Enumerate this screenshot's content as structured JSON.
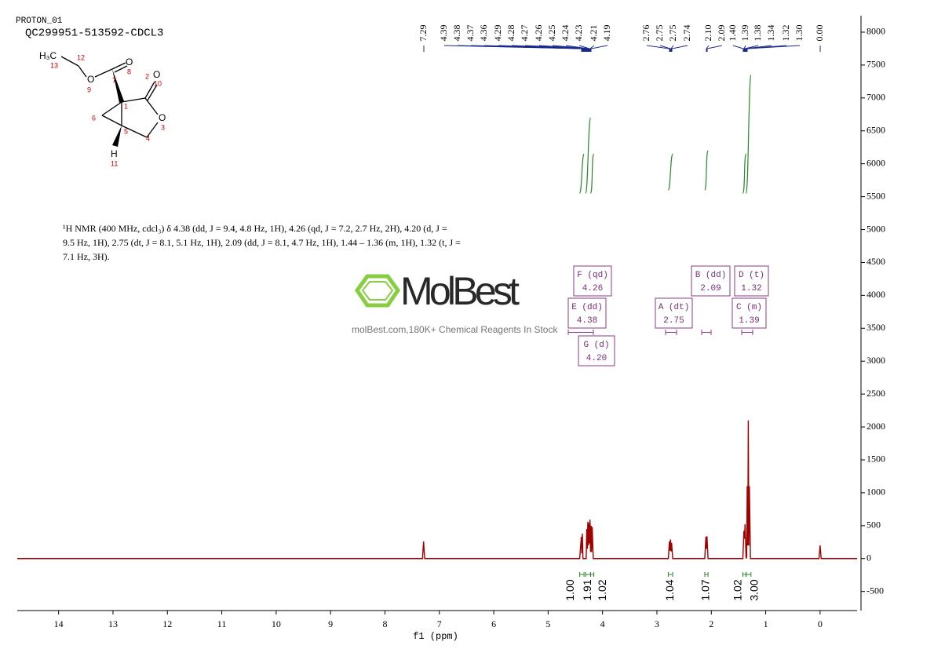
{
  "header": {
    "run": "PROTON_01",
    "sample": "QC299951-513592-CDCL3"
  },
  "molecule": {
    "atoms": [
      "H₃C",
      "13",
      "12",
      "O",
      "9",
      "7",
      "O",
      "8",
      "1",
      "2",
      "O",
      "10",
      "O",
      "3",
      "6",
      "5",
      "4",
      "H",
      "11"
    ]
  },
  "description": [
    "¹H NMR (400 MHz, cdcl₃) δ 4.38 (dd, J = 9.4, 4.8 Hz, 1H), 4.26 (qd, J = 7.2, 2.7 Hz, 2H), 4.20 (d, J =",
    "9.5 Hz, 1H), 2.75 (dt, J = 8.1, 5.1 Hz, 1H), 2.09 (dd, J = 8.1, 4.7 Hz, 1H), 1.44 – 1.36 (m, 1H), 1.32 (t, J =",
    "7.1 Hz, 3H)."
  ],
  "watermark": {
    "brand": "MolBest",
    "tagline": "molBest.com,180K+ Chemical Reagents In Stock"
  },
  "chart_data": {
    "type": "line",
    "x_label": "f1 (ppm)",
    "x": [
      14.76,
      7.31,
      7.29,
      7.27,
      4.42,
      4.39,
      4.38,
      4.37,
      4.36,
      4.3,
      4.29,
      4.28,
      4.27,
      4.26,
      4.25,
      4.24,
      4.23,
      4.22,
      4.21,
      4.2,
      4.19,
      4.17,
      2.79,
      2.77,
      2.76,
      2.75,
      2.74,
      2.73,
      2.71,
      2.12,
      2.1,
      2.09,
      2.08,
      2.06,
      1.42,
      1.4,
      1.39,
      1.38,
      1.36,
      1.35,
      1.34,
      1.33,
      1.32,
      1.31,
      1.3,
      1.28,
      0.02,
      0.0,
      -0.02,
      -0.68
    ],
    "series": [
      {
        "color": "#a00000",
        "values": [
          0,
          0,
          260,
          0,
          0,
          330,
          80,
          380,
          0,
          0,
          450,
          150,
          560,
          200,
          540,
          230,
          590,
          100,
          500,
          100,
          480,
          0,
          0,
          260,
          120,
          290,
          110,
          240,
          0,
          0,
          330,
          150,
          340,
          0,
          0,
          420,
          300,
          520,
          0,
          30,
          1100,
          200,
          2100,
          200,
          1100,
          0,
          0,
          200,
          0,
          0
        ]
      }
    ],
    "xlim": [
      14.76,
      -0.68
    ],
    "xticks": [
      14,
      13,
      12,
      11,
      10,
      9,
      8,
      7,
      6,
      5,
      4,
      3,
      2,
      1,
      0
    ],
    "ylim": [
      -790,
      8250
    ],
    "yticks": [
      -500,
      0,
      500,
      1000,
      1500,
      2000,
      2500,
      3000,
      3500,
      4000,
      4500,
      5000,
      5500,
      6000,
      6500,
      7000,
      7500,
      8000
    ],
    "peak_labels": [
      "7.29",
      "4.39",
      "4.38",
      "4.37",
      "4.36",
      "4.29",
      "4.28",
      "4.27",
      "4.26",
      "4.25",
      "4.24",
      "4.23",
      "4.21",
      "4.19",
      "2.76",
      "2.75",
      "2.75",
      "2.74",
      "2.10",
      "2.09",
      "1.40",
      "1.39",
      "1.38",
      "1.34",
      "1.32",
      "1.30",
      "0.00"
    ],
    "multiplets": [
      {
        "label": "F (qd)",
        "shift": "4.26"
      },
      {
        "label": "B (dd)",
        "shift": "2.09"
      },
      {
        "label": "D (t)",
        "shift": "1.32"
      },
      {
        "label": "E (dd)",
        "shift": "4.38"
      },
      {
        "label": "A (dt)",
        "shift": "2.75"
      },
      {
        "label": "C (m)",
        "shift": "1.39"
      },
      {
        "label": "G (d)",
        "shift": "4.20"
      }
    ],
    "integrals": [
      {
        "from": 4.42,
        "to": 4.34,
        "label": "1.00",
        "curve": [
          5550,
          6150
        ]
      },
      {
        "from": 4.31,
        "to": 4.22,
        "label": "1.91",
        "curve": [
          5550,
          6700
        ]
      },
      {
        "from": 4.22,
        "to": 4.16,
        "label": "1.02",
        "curve": [
          5550,
          6150
        ]
      },
      {
        "from": 2.79,
        "to": 2.71,
        "label": "1.04",
        "curve": [
          5600,
          6150
        ]
      },
      {
        "from": 2.12,
        "to": 2.06,
        "label": "1.07",
        "curve": [
          5600,
          6200
        ]
      },
      {
        "from": 1.42,
        "to": 1.36,
        "label": "1.02",
        "curve": [
          5550,
          6150
        ]
      },
      {
        "from": 1.36,
        "to": 1.27,
        "label": "3.00",
        "curve": [
          5550,
          7350
        ]
      }
    ]
  }
}
